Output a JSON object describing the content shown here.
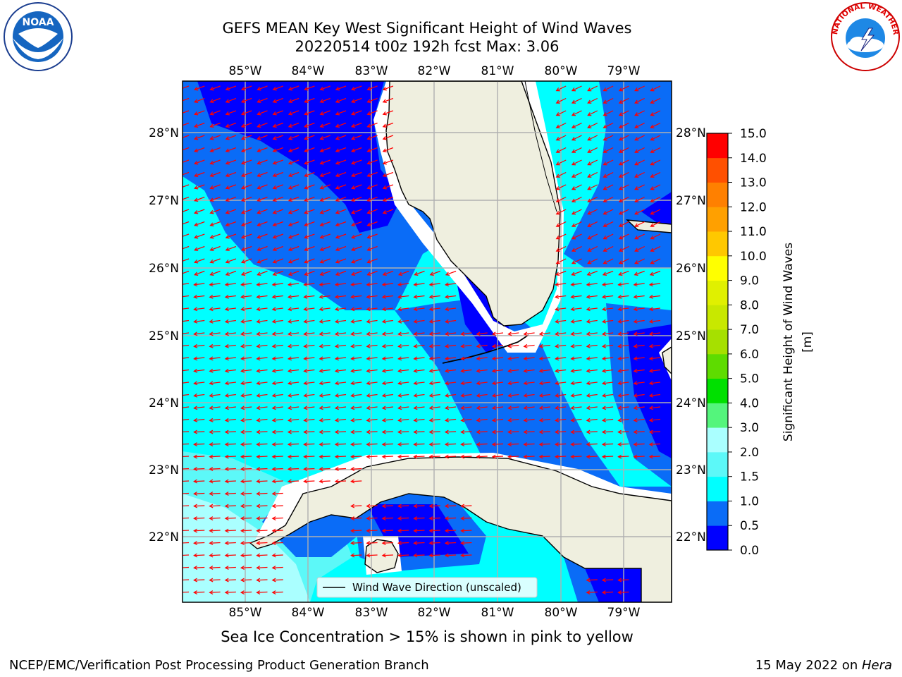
{
  "title": {
    "line1": "GEFS MEAN Key West Significant Height of Wind Waves",
    "line2": "20220514 t00z 192h fcst   Max: 3.06"
  },
  "logos": {
    "left_name": "noaa-logo",
    "left_text": "NOAA",
    "right_name": "nws-logo",
    "right_text": "NATIONAL WEATHER SERVICE"
  },
  "map": {
    "lon_ticks": [
      "85°W",
      "84°W",
      "83°W",
      "82°W",
      "81°W",
      "80°W",
      "79°W"
    ],
    "lat_ticks": [
      "28°N",
      "27°N",
      "26°N",
      "25°N",
      "24°N",
      "23°N",
      "22°N"
    ],
    "lon_range": [
      -86.0,
      -78.3
    ],
    "lat_range": [
      21.0,
      28.75
    ],
    "legend_label": "Wind Wave Direction (unscaled)",
    "arrow_color": "#ff0000"
  },
  "colorbar": {
    "label": "Significant Height of Wind Waves [m]",
    "levels": [
      0.0,
      0.5,
      1.0,
      1.5,
      2.0,
      3.0,
      4.0,
      5.0,
      6.0,
      7.0,
      8.0,
      9.0,
      10.0,
      11.0,
      12.0,
      13.0,
      14.0,
      15.0
    ],
    "tick_labels": [
      "0.0",
      "0.5",
      "1.0",
      "1.5",
      "2.0",
      "3.0",
      "4.0",
      "5.0",
      "6.0",
      "7.0",
      "8.0",
      "9.0",
      "10.0",
      "11.0",
      "12.0",
      "13.0",
      "14.0",
      "15.0"
    ],
    "colors": [
      "#0000ff",
      "#0a6cf7",
      "#00ffff",
      "#5cf8f8",
      "#aaffff",
      "#54f57c",
      "#00e000",
      "#5edc00",
      "#a6e000",
      "#c8e800",
      "#e0f000",
      "#ffff00",
      "#ffc800",
      "#ffa000",
      "#ff8000",
      "#ff5000",
      "#ff0000"
    ]
  },
  "notes": {
    "sea_ice": "Sea Ice Concentration > 15% is shown in pink to yellow"
  },
  "footer": {
    "left": "NCEP/EMC/Verification Post Processing Product Generation Branch",
    "right_date": "15 May 2022 on ",
    "right_host": "Hera"
  },
  "palette": {
    "land": "#efefdf",
    "grid": "#b0b0b0",
    "coast": "#000000"
  }
}
